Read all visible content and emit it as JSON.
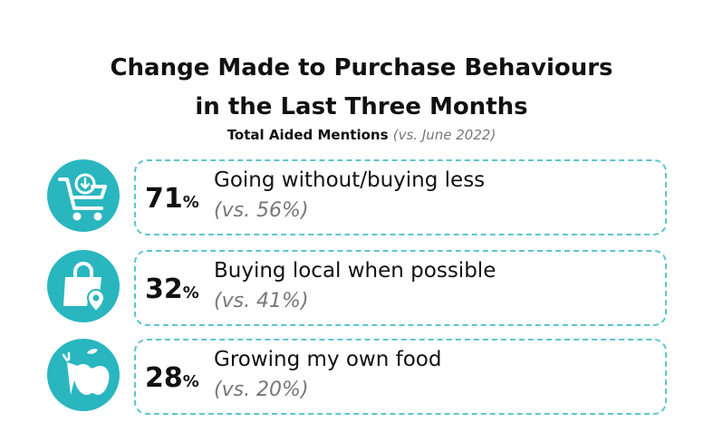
{
  "header": {
    "title_line1": "Change Made to Purchase Behaviours",
    "title_line2": "in the Last Three Months",
    "subtitle_main": "Total Aided Mentions",
    "subtitle_comparison": "(vs. June 2022)"
  },
  "chart_data": {
    "type": "table",
    "title": "Change Made to Purchase Behaviours in the Last Three Months",
    "subtitle": "Total Aided Mentions (vs. June 2022)",
    "rows": [
      {
        "value": 71,
        "unit": "%",
        "label": "Going without/buying less",
        "comparison": "(vs. 56%)",
        "previous_value": 56,
        "icon": "shopping-cart-icon"
      },
      {
        "value": 32,
        "unit": "%",
        "label": "Buying local when possible",
        "comparison": "(vs. 41%)",
        "previous_value": 41,
        "icon": "shopping-bag-location-icon"
      },
      {
        "value": 28,
        "unit": "%",
        "label": "Growing my own food",
        "comparison": "(vs. 20%)",
        "previous_value": 20,
        "icon": "produce-icon"
      }
    ]
  },
  "colors": {
    "accent": "#29b6bf",
    "border": "#5cc6cc",
    "muted_text": "#777777"
  }
}
